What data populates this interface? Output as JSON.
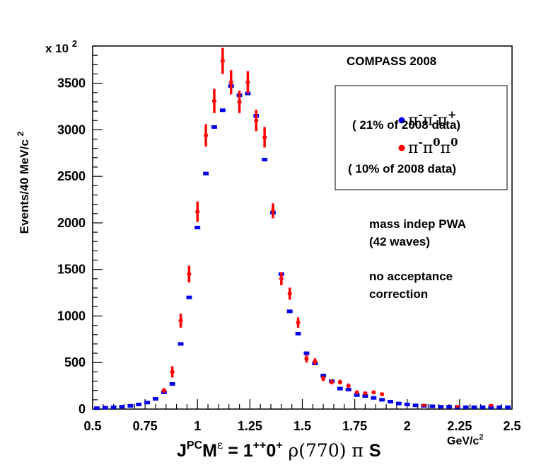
{
  "chart_data": {
    "type": "scatter",
    "exponent_label": {
      "base": "x 10",
      "exp": "2"
    },
    "annotation_top": "COMPASS 2008",
    "ylabel": {
      "main": "Events/40 MeV/c",
      "sup": "2"
    },
    "xlabel": {
      "j": "J",
      "pc": "PC",
      "m": "M",
      "eps": "ε",
      "eq": " = 1",
      "pp": "++",
      "zero": "0",
      "plus": "+",
      "rho": " ρ(770) π ",
      "s": "S"
    },
    "xunit": {
      "main": "GeV/c",
      "sup": "2"
    },
    "xlim": [
      0.5,
      2.5
    ],
    "ylim": [
      0,
      3900
    ],
    "x_ticks": [
      0.5,
      0.75,
      1,
      1.25,
      1.5,
      1.75,
      2,
      2.25,
      2.5
    ],
    "x_tick_labels": [
      "0.5",
      "0.75",
      "1",
      "1.25",
      "1.5",
      "1.75",
      "2",
      "2.25",
      "2.5"
    ],
    "y_ticks": [
      0,
      500,
      1000,
      1500,
      2000,
      2500,
      3000,
      3500
    ],
    "y_tick_labels": [
      "0",
      "500",
      "1000",
      "1500",
      "2000",
      "2500",
      "3000",
      "3500"
    ],
    "legend": {
      "entries": [
        {
          "label": "π⁻π⁻π⁺",
          "color": "#0000ee",
          "note": "( 21% of 2008 data)"
        },
        {
          "label": "π⁻π⁰π⁰",
          "color": "#ff0000",
          "note": "( 10% of 2008 data)"
        }
      ]
    },
    "text_notes": [
      "mass indep PWA",
      "(42 waves)",
      "no acceptance",
      "correction"
    ],
    "series": [
      {
        "name": "π⁻π⁻π⁺",
        "color": "#0000ee",
        "style": "bar",
        "x": [
          0.52,
          0.56,
          0.6,
          0.64,
          0.68,
          0.72,
          0.76,
          0.8,
          0.84,
          0.88,
          0.92,
          0.96,
          1.0,
          1.04,
          1.08,
          1.12,
          1.16,
          1.2,
          1.24,
          1.28,
          1.32,
          1.36,
          1.4,
          1.44,
          1.48,
          1.52,
          1.56,
          1.6,
          1.64,
          1.68,
          1.72,
          1.76,
          1.8,
          1.84,
          1.88,
          1.92,
          1.96,
          2.0,
          2.04,
          2.08,
          2.12,
          2.16,
          2.2,
          2.24,
          2.28,
          2.32,
          2.36,
          2.4,
          2.44,
          2.48
        ],
        "y": [
          10,
          15,
          20,
          25,
          35,
          50,
          70,
          110,
          180,
          270,
          700,
          1200,
          1950,
          2530,
          3030,
          3210,
          3470,
          3370,
          3390,
          3150,
          2680,
          2110,
          1450,
          1050,
          810,
          600,
          490,
          360,
          300,
          220,
          210,
          150,
          140,
          120,
          100,
          80,
          60,
          50,
          40,
          35,
          30,
          25,
          25,
          20,
          20,
          20,
          20,
          20,
          20,
          20
        ]
      },
      {
        "name": "π⁻π⁰π⁰",
        "color": "#ff0000",
        "style": "errorbar",
        "x": [
          0.84,
          0.88,
          0.92,
          0.96,
          1.0,
          1.04,
          1.08,
          1.12,
          1.16,
          1.2,
          1.24,
          1.28,
          1.32,
          1.36,
          1.4,
          1.44,
          1.48,
          1.52,
          1.56,
          1.6,
          1.64,
          1.68,
          1.72,
          1.76,
          1.8,
          1.84,
          1.88,
          2.08,
          2.24,
          2.4
        ],
        "y": [
          200,
          400,
          950,
          1450,
          2120,
          2940,
          3310,
          3740,
          3510,
          3300,
          3510,
          3100,
          2920,
          2130,
          1400,
          1240,
          930,
          540,
          510,
          330,
          290,
          290,
          250,
          180,
          170,
          180,
          160,
          40,
          30,
          40
        ],
        "err": [
          25,
          60,
          75,
          90,
          110,
          120,
          130,
          140,
          130,
          120,
          120,
          115,
          110,
          80,
          70,
          65,
          55,
          40,
          35,
          30,
          25,
          25,
          25,
          20,
          20,
          20,
          20,
          15,
          12,
          15
        ]
      }
    ]
  }
}
